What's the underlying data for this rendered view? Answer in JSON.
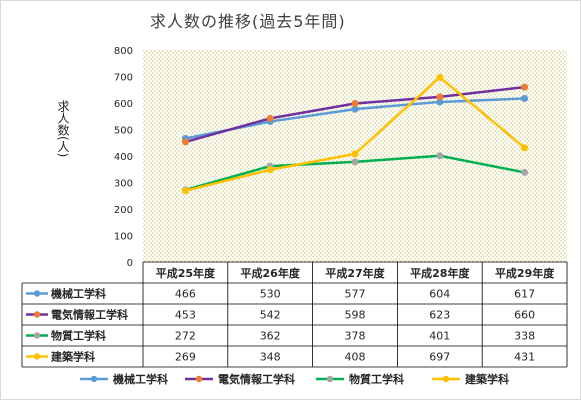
{
  "chart_data": {
    "type": "line",
    "title": "求人数の推移(過去5年間)",
    "ylabel": "求人数(人)",
    "ylim": [
      0,
      800
    ],
    "yticks": [
      0,
      100,
      200,
      300,
      400,
      500,
      600,
      700,
      800
    ],
    "categories": [
      "平成25年度",
      "平成26年度",
      "平成27年度",
      "平成28年度",
      "平成29年度"
    ],
    "grid": false,
    "legend": "bottom",
    "plot_background": "dotted-yellow",
    "series": [
      {
        "name": "機械工学科",
        "color": "#5b9bd5",
        "values": [
          466,
          530,
          577,
          604,
          617
        ]
      },
      {
        "name": "電気情報工学科",
        "color": "#7030a0",
        "marker_color": "#ed7d31",
        "values": [
          453,
          542,
          598,
          623,
          660
        ]
      },
      {
        "name": "物質工学科",
        "color": "#00b050",
        "marker_color": "#a5a5a5",
        "values": [
          272,
          362,
          378,
          401,
          338
        ]
      },
      {
        "name": "建築学科",
        "color": "#ffc000",
        "values": [
          269,
          348,
          408,
          697,
          431
        ]
      }
    ]
  }
}
